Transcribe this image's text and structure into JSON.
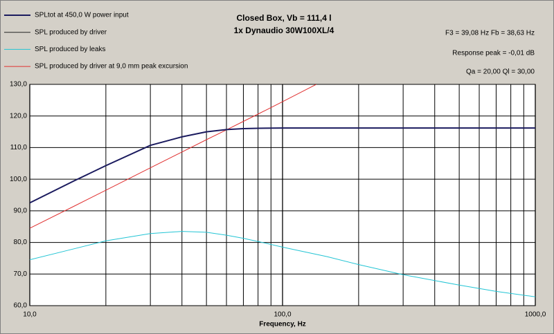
{
  "chart_data": {
    "type": "line",
    "title": "Closed Box, Vb = 111,4 l",
    "subtitle": "1x Dynaudio 30W100XL/4",
    "annotations": [
      "F3 = 39,08 Hz  Fb = 38,63 Hz",
      "Response peak = -0,01 dB",
      "Qa = 20,00  Ql = 30,00"
    ],
    "xlabel": "Frequency, Hz",
    "xscale": "log",
    "xlim": [
      10,
      1000
    ],
    "xticks": [
      {
        "value": 10,
        "label": "10,0"
      },
      {
        "value": 100,
        "label": "100,0"
      },
      {
        "value": 1000,
        "label": "1000,0"
      }
    ],
    "xminorticks": [
      20,
      30,
      40,
      50,
      60,
      70,
      80,
      90,
      200,
      300,
      400,
      500,
      600,
      700,
      800,
      900
    ],
    "ylim": [
      60,
      130
    ],
    "yticks": [
      {
        "value": 60,
        "label": "60,0"
      },
      {
        "value": 70,
        "label": "70,0"
      },
      {
        "value": 80,
        "label": "80,0"
      },
      {
        "value": 90,
        "label": "90,0"
      },
      {
        "value": 100,
        "label": "100,0"
      },
      {
        "value": 110,
        "label": "110,0"
      },
      {
        "value": 120,
        "label": "120,0"
      },
      {
        "value": 130,
        "label": "130,0"
      }
    ],
    "grid": true,
    "legend": "top-left",
    "series": [
      {
        "name": "SPLtot at 450,0 W power input",
        "color": "#1a1a5e",
        "x": [
          10,
          15,
          20,
          30,
          40,
          50,
          60,
          70,
          80,
          100,
          150,
          200,
          300,
          500,
          700,
          1000
        ],
        "values": [
          92.5,
          99.5,
          104.3,
          110.7,
          113.4,
          115,
          115.7,
          116,
          116.1,
          116.2,
          116.2,
          116.2,
          116.2,
          116.2,
          116.2,
          116.2
        ]
      },
      {
        "name": "SPL produced by driver",
        "color": "#222222",
        "x": [
          10,
          15,
          20,
          30,
          40,
          50,
          60,
          70,
          80,
          100,
          150,
          200,
          300,
          500,
          700,
          1000
        ],
        "values": [
          92.5,
          99.5,
          104.3,
          110.7,
          113.4,
          115,
          115.7,
          116,
          116.1,
          116.2,
          116.2,
          116.2,
          116.2,
          116.2,
          116.2,
          116.2
        ]
      },
      {
        "name": "SPL produced by leaks",
        "color": "#22c4d4",
        "x": [
          10,
          15,
          20,
          30,
          40,
          50,
          60,
          70,
          80,
          100,
          150,
          200,
          300,
          500,
          700,
          1000
        ],
        "values": [
          74.5,
          78,
          80.5,
          82.8,
          83.5,
          83.2,
          82.3,
          81.3,
          80.3,
          78.5,
          75.5,
          73,
          69.8,
          66.5,
          64.5,
          62.8
        ]
      },
      {
        "name": "SPL produced by driver at 9,0 mm peak excursion",
        "color": "#e03030",
        "x": [
          10,
          15,
          20,
          30,
          40,
          50,
          60,
          70,
          80,
          100,
          136
        ],
        "values": [
          84.5,
          91.5,
          96.5,
          103.6,
          108.6,
          112.5,
          115.6,
          118.3,
          120.6,
          124.5,
          130
        ]
      }
    ]
  }
}
